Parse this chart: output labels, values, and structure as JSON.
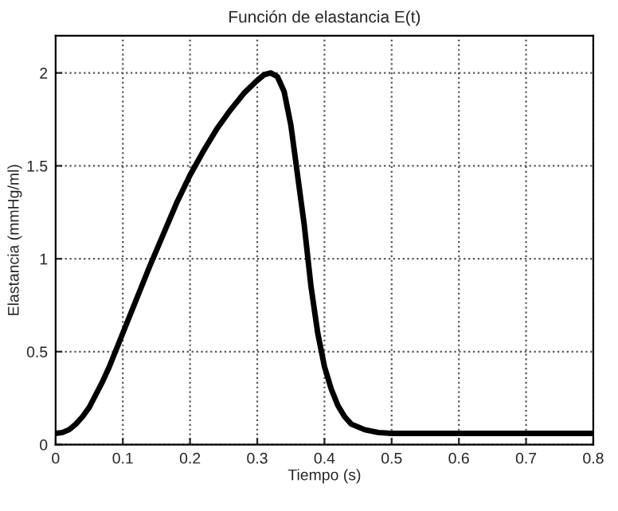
{
  "chart_data": {
    "type": "line",
    "title": "Función de elastancia E(t)",
    "xlabel": "Tiempo (s)",
    "ylabel": "Elastancia (mmHg/ml)",
    "x": [
      0,
      0.01,
      0.02,
      0.03,
      0.04,
      0.05,
      0.06,
      0.07,
      0.08,
      0.09,
      0.1,
      0.12,
      0.14,
      0.16,
      0.18,
      0.2,
      0.22,
      0.24,
      0.26,
      0.28,
      0.3,
      0.31,
      0.32,
      0.33,
      0.34,
      0.35,
      0.36,
      0.37,
      0.38,
      0.39,
      0.4,
      0.41,
      0.42,
      0.43,
      0.44,
      0.46,
      0.48,
      0.5,
      0.6,
      0.8
    ],
    "series": [
      {
        "color": "#000000",
        "values": [
          0.06,
          0.065,
          0.08,
          0.11,
          0.15,
          0.2,
          0.27,
          0.34,
          0.42,
          0.51,
          0.6,
          0.78,
          0.96,
          1.13,
          1.3,
          1.45,
          1.58,
          1.7,
          1.8,
          1.89,
          1.96,
          1.99,
          2.0,
          1.98,
          1.9,
          1.72,
          1.45,
          1.18,
          0.85,
          0.6,
          0.42,
          0.3,
          0.21,
          0.15,
          0.11,
          0.08,
          0.065,
          0.06,
          0.06,
          0.06
        ]
      }
    ],
    "xlim": [
      0,
      0.8
    ],
    "ylim": [
      0,
      2.2
    ],
    "xticks": [
      0,
      0.1,
      0.2,
      0.3,
      0.4,
      0.5,
      0.6,
      0.7,
      0.8
    ],
    "yticks": [
      0,
      0.5,
      1,
      1.5,
      2
    ],
    "grid": true,
    "line_style": "solid",
    "marker": "none"
  }
}
